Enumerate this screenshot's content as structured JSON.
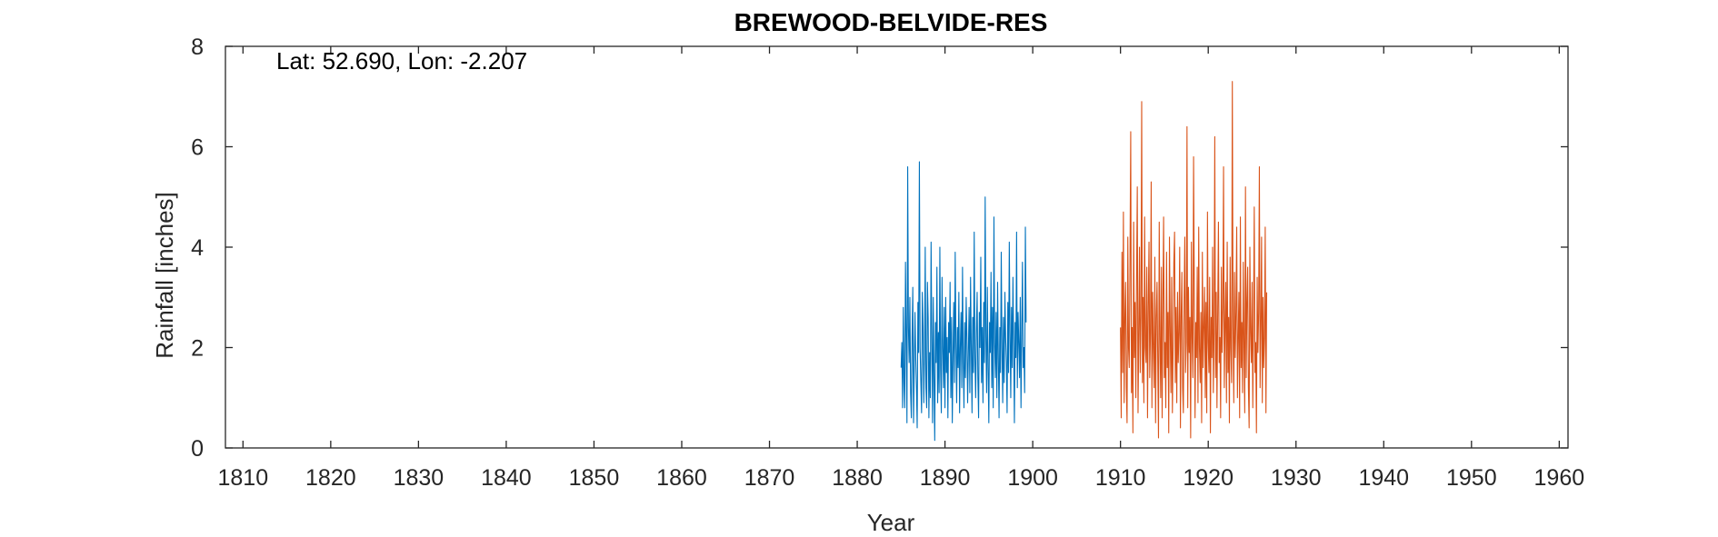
{
  "chart_data": {
    "type": "line",
    "title": "BREWOOD-BELVIDE-RES",
    "xlabel": "Year",
    "ylabel": "Rainfall [inches]",
    "annotation": "Lat: 52.690, Lon: -2.207",
    "xlim": [
      1808,
      1961
    ],
    "ylim": [
      0,
      8
    ],
    "x_ticks": [
      1810,
      1820,
      1830,
      1840,
      1850,
      1860,
      1870,
      1880,
      1890,
      1900,
      1910,
      1920,
      1930,
      1940,
      1950,
      1960
    ],
    "y_ticks": [
      0,
      2,
      4,
      6,
      8
    ],
    "grid": false,
    "series": [
      {
        "color": "#0072BD",
        "x_start": 1885.0,
        "x_step": 0.0833,
        "values": [
          1.6,
          2.1,
          0.8,
          2.8,
          1.3,
          0.8,
          3.7,
          2.2,
          0.5,
          5.6,
          2.4,
          1.7,
          3.0,
          1.1,
          0.6,
          2.2,
          3.2,
          0.5,
          1.6,
          2.7,
          1.8,
          1.2,
          0.4,
          2.9,
          1.9,
          5.7,
          2.0,
          1.3,
          0.7,
          3.1,
          2.4,
          0.9,
          1.8,
          4.0,
          1.2,
          0.8,
          3.3,
          2.6,
          0.6,
          1.9,
          1.0,
          4.1,
          2.2,
          0.5,
          3.0,
          1.4,
          0.15,
          2.5,
          1.7,
          3.6,
          0.9,
          2.3,
          1.1,
          4.0,
          1.6,
          0.7,
          3.4,
          2.0,
          1.2,
          2.8,
          0.8,
          3.0,
          1.5,
          2.2,
          0.6,
          2.5,
          1.9,
          3.3,
          1.0,
          2.6,
          0.5,
          1.8,
          2.9,
          1.3,
          3.9,
          2.1,
          0.9,
          2.4,
          1.6,
          3.1,
          0.7,
          2.0,
          2.7,
          1.2,
          3.6,
          1.7,
          0.8,
          2.5,
          1.4,
          3.0,
          2.2,
          0.9,
          1.9,
          2.8,
          1.1,
          3.4,
          2.0,
          0.7,
          2.6,
          1.5,
          4.3,
          1.8,
          1.0,
          2.3,
          3.1,
          1.4,
          0.6,
          2.7,
          2.0,
          3.8,
          1.3,
          2.4,
          0.9,
          2.9,
          1.7,
          5.0,
          2.2,
          1.1,
          3.2,
          1.6,
          0.5,
          2.5,
          1.9,
          3.5,
          1.2,
          2.8,
          0.8,
          4.6,
          2.1,
          1.4,
          2.7,
          1.0,
          3.3,
          1.8,
          0.6,
          2.4,
          1.5,
          3.9,
          2.0,
          0.9,
          2.6,
          1.3,
          3.1,
          2.2,
          1.7,
          0.7,
          2.9,
          1.5,
          4.1,
          2.3,
          1.0,
          2.8,
          1.6,
          3.4,
          2.0,
          0.5,
          2.5,
          1.8,
          4.3,
          1.2,
          2.7,
          2.1,
          1.4,
          3.0,
          0.8,
          2.3,
          3.7,
          1.6,
          2.0,
          1.1,
          4.4,
          2.5
        ]
      },
      {
        "color": "#D95319",
        "x_start": 1910.0,
        "x_step": 0.0833,
        "values": [
          2.4,
          0.6,
          3.9,
          1.5,
          4.7,
          0.9,
          2.6,
          3.3,
          1.2,
          0.5,
          4.2,
          2.0,
          1.6,
          3.7,
          6.3,
          1.1,
          2.4,
          0.3,
          4.5,
          1.8,
          2.9,
          1.0,
          3.4,
          5.2,
          0.7,
          2.2,
          4.0,
          1.5,
          2.6,
          6.9,
          1.3,
          3.0,
          0.9,
          4.6,
          2.0,
          1.7,
          3.6,
          0.6,
          2.8,
          4.1,
          1.4,
          2.3,
          5.3,
          0.8,
          3.1,
          2.0,
          1.2,
          3.8,
          0.5,
          2.6,
          3.3,
          1.7,
          0.2,
          4.5,
          2.2,
          1.0,
          3.6,
          0.6,
          2.9,
          4.6,
          1.4,
          2.1,
          0.8,
          3.9,
          1.6,
          2.7,
          0.3,
          4.2,
          2.4,
          1.1,
          3.4,
          0.7,
          2.0,
          3.7,
          4.3,
          1.3,
          2.8,
          0.9,
          3.1,
          1.7,
          2.3,
          4.0,
          0.4,
          2.6,
          3.5,
          1.2,
          0.7,
          2.9,
          4.2,
          1.5,
          2.1,
          6.4,
          0.8,
          3.2,
          1.9,
          2.6,
          0.2,
          4.1,
          2.2,
          1.4,
          5.8,
          3.0,
          0.6,
          2.5,
          1.8,
          3.6,
          0.9,
          4.4,
          2.0,
          1.3,
          2.7,
          0.5,
          3.9,
          1.6,
          2.4,
          3.2,
          1.0,
          2.9,
          0.7,
          4.7,
          2.1,
          1.5,
          3.4,
          0.3,
          2.6,
          1.8,
          4.0,
          1.1,
          2.3,
          6.2,
          1.4,
          3.1,
          0.8,
          2.7,
          4.5,
          1.7,
          2.2,
          0.6,
          3.6,
          1.9,
          2.8,
          5.6,
          1.2,
          2.4,
          3.3,
          0.9,
          4.1,
          1.5,
          2.6,
          0.5,
          3.8,
          2.0,
          1.3,
          7.3,
          2.4,
          0.9,
          3.5,
          1.8,
          2.7,
          4.4,
          1.0,
          2.2,
          3.1,
          0.6,
          4.6,
          1.6,
          2.5,
          1.1,
          3.7,
          2.0,
          0.7,
          5.2,
          1.4,
          2.9,
          3.6,
          1.2,
          0.4,
          4.0,
          2.3,
          1.7,
          3.3,
          0.8,
          2.6,
          4.8,
          1.5,
          2.1,
          0.3,
          3.4,
          1.9,
          2.7,
          5.6,
          1.2,
          2.4,
          4.2,
          0.9,
          3.0,
          1.6,
          2.2,
          4.4,
          0.7,
          3.1
        ]
      }
    ]
  }
}
